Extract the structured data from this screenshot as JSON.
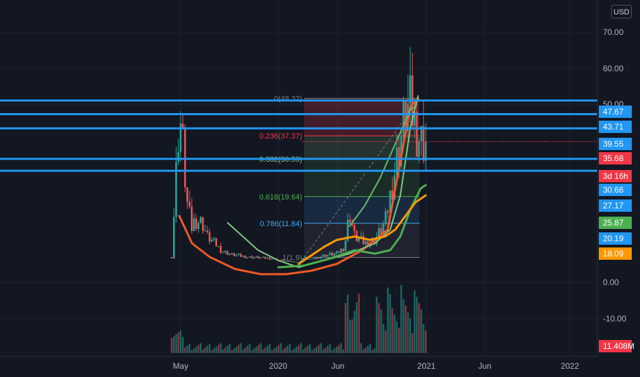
{
  "currency_label": "USD",
  "chart_data": {
    "type": "candlestick",
    "y_axis_ticks": [
      "70.00",
      "60.00",
      "50.00",
      "0.00",
      "-10.00"
    ],
    "x_axis_ticks": [
      "May",
      "2020",
      "Jun",
      "2021",
      "Jun",
      "2022"
    ],
    "horizontal_levels": [
      47.67,
      43.71,
      39.55,
      30.66,
      27.17
    ],
    "price_badges": [
      {
        "label": "47.67",
        "color": "#2196f3"
      },
      {
        "label": "43.71",
        "color": "#2196f3"
      },
      {
        "label": "39.55",
        "color": "#2196f3"
      },
      {
        "label": "35.68",
        "color": "#f23645"
      },
      {
        "label": "3d 16h",
        "color": "#f23645"
      },
      {
        "label": "30.66",
        "color": "#2196f3"
      },
      {
        "label": "27.17",
        "color": "#2196f3"
      },
      {
        "label": "25.87",
        "color": "#4caf50"
      },
      {
        "label": "20.19",
        "color": "#2196f3"
      },
      {
        "label": "18.09",
        "color": "#ff9800"
      },
      {
        "label": "11.408M",
        "color": "#f23645"
      }
    ],
    "fibonacci": [
      {
        "label": "0(48.32)",
        "value": 48.32,
        "color": "#787b86"
      },
      {
        "label": "0.236(37.37)",
        "value": 37.37,
        "color": "#f23645"
      },
      {
        "label": "0.382(30.59)",
        "value": 30.59,
        "color": "#81c784"
      },
      {
        "label": "0.618(19.64)",
        "value": 19.64,
        "color": "#4caf50"
      },
      {
        "label": "0.786(11.84)",
        "value": 11.84,
        "color": "#42a5f5"
      },
      {
        "label": "1(1.9)",
        "value": 1.9,
        "color": "#787b86"
      }
    ],
    "last_price": 35.68,
    "colors": {
      "up": "#26a69a",
      "down": "#ef5350",
      "level": "#2196f3"
    }
  }
}
